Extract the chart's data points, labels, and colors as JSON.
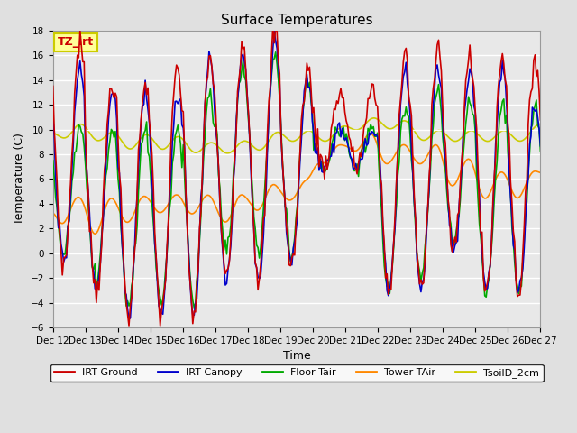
{
  "title": "Surface Temperatures",
  "xlabel": "Time",
  "ylabel": "Temperature (C)",
  "ylim": [
    -6,
    18
  ],
  "yticks": [
    -6,
    -4,
    -2,
    0,
    2,
    4,
    6,
    8,
    10,
    12,
    14,
    16,
    18
  ],
  "series_colors": {
    "IRT Ground": "#CC0000",
    "IRT Canopy": "#0000CC",
    "Floor Tair": "#00AA00",
    "Tower TAir": "#FF8800",
    "TsoilD_2cm": "#CCCC00"
  },
  "fig_bg_color": "#E0E0E0",
  "plot_bg_color": "#E8E8E8",
  "grid_color": "#FFFFFF",
  "annotation_text": "TZ_irt",
  "annotation_color": "#CC0000",
  "annotation_bg": "#FFFF99",
  "annotation_border": "#CCCC00",
  "xtick_labels": [
    "Dec 12",
    "Dec 13",
    "Dec 14",
    "Dec 15",
    "Dec 16",
    "Dec 17",
    "Dec 18",
    "Dec 19",
    "Dec 20",
    "Dec 21",
    "Dec 22",
    "Dec 23",
    "Dec 24",
    "Dec 25",
    "Dec 26",
    "Dec 27"
  ],
  "legend_labels": [
    "IRT Ground",
    "IRT Canopy",
    "Floor Tair",
    "Tower TAir",
    "TsoilD_2cm"
  ],
  "title_fontsize": 11,
  "axis_label_fontsize": 9,
  "tick_fontsize": 7.5,
  "linewidth": 1.2
}
